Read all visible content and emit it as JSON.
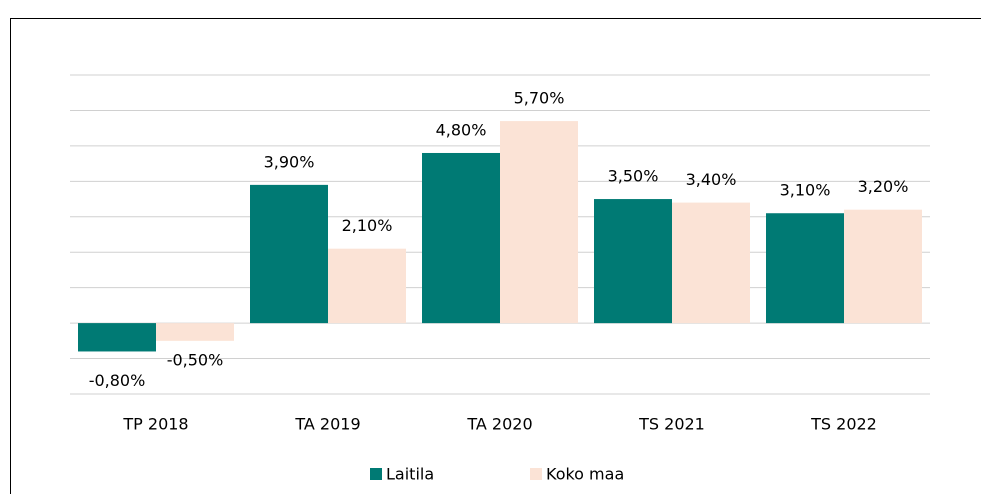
{
  "chart_data": {
    "type": "bar",
    "categories": [
      "TP 2018",
      "TA 2019",
      "TA 2020",
      "TS 2021",
      "TS 2022"
    ],
    "series": [
      {
        "name": "Laitila",
        "color": "#007a74",
        "values": [
          -0.8,
          3.9,
          4.8,
          3.5,
          3.1
        ],
        "value_labels": [
          "-0,80%",
          "3,90%",
          "4,80%",
          "3,50%",
          "3,10%"
        ]
      },
      {
        "name": "Koko maa",
        "color": "#fbe3d6",
        "values": [
          -0.5,
          2.1,
          5.7,
          3.4,
          3.2
        ],
        "value_labels": [
          "-0,50%",
          "2,10%",
          "5,70%",
          "3,40%",
          "3,20%"
        ]
      }
    ],
    "ylim": [
      -2,
      7
    ],
    "yticks": [
      -2,
      -1,
      0,
      1,
      2,
      3,
      4,
      5,
      6,
      7
    ],
    "grid": true,
    "legend": "bottom"
  }
}
